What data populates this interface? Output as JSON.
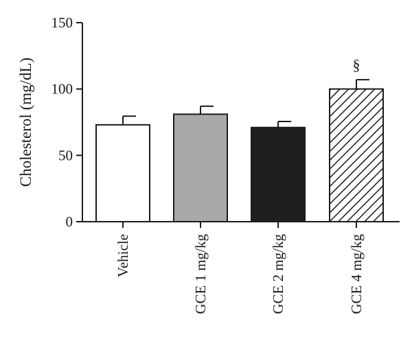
{
  "chart_data": {
    "type": "bar",
    "title": "",
    "xlabel": "",
    "ylabel": "Cholesterol (mg/dL)",
    "ylim": [
      0,
      150
    ],
    "yticks": [
      0,
      50,
      100,
      150
    ],
    "categories": [
      "Vehicle",
      "GCE 1 mg/kg",
      "GCE 2 mg/kg",
      "GCE 4 mg/kg"
    ],
    "values": [
      73,
      81,
      71,
      100
    ],
    "errors": [
      6.5,
      6,
      4.5,
      7
    ],
    "bar_styles": [
      "white",
      "gray",
      "black",
      "hatched"
    ],
    "annotations": [
      {
        "category_index": 3,
        "text": "§"
      }
    ],
    "grid": false,
    "legend": "none"
  }
}
